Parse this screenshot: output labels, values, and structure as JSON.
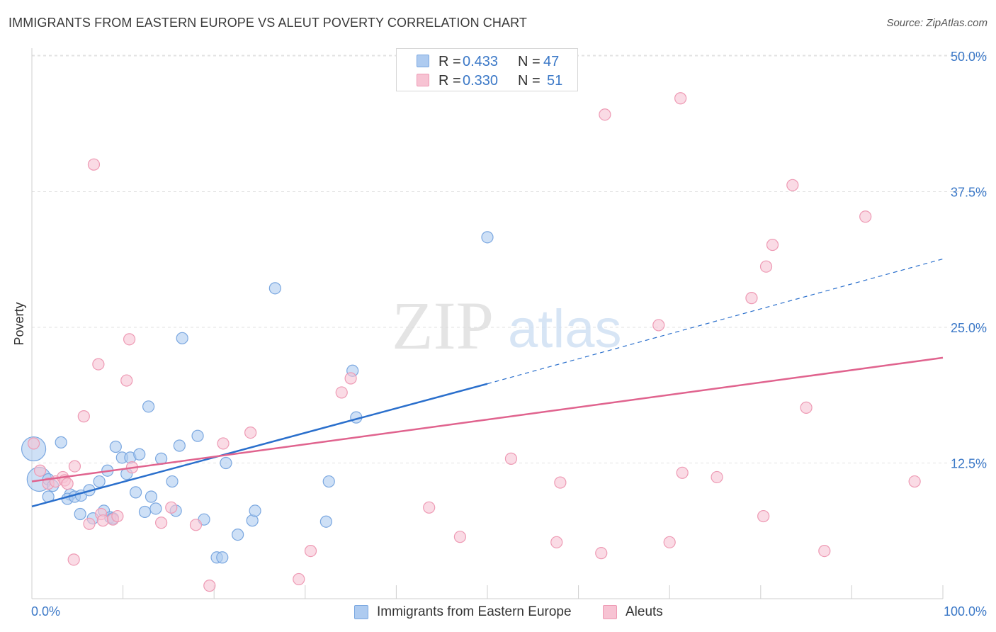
{
  "title": "IMMIGRANTS FROM EASTERN EUROPE VS ALEUT POVERTY CORRELATION CHART",
  "source": "Source: ZipAtlas.com",
  "watermark": {
    "zip": "ZIP",
    "atlas": "atlas"
  },
  "legend_top": [
    {
      "r_label": "R =",
      "r_value": "0.433",
      "n_label": "N =",
      "n_value": "47"
    },
    {
      "r_label": "R =",
      "r_value": "0.330",
      "n_label": "N =",
      "n_value": "51"
    }
  ],
  "colors": {
    "blue_fill": "#aecbf0",
    "blue_stroke": "#7aa7e0",
    "blue_line": "#2a6fcc",
    "pink_fill": "#f7c3d3",
    "pink_stroke": "#ee9ab4",
    "pink_line": "#e0638e",
    "axis_text": "#3b78c7",
    "grid": "#e2e2e2"
  },
  "chart_data": {
    "type": "scatter",
    "title": "IMMIGRANTS FROM EASTERN EUROPE VS ALEUT POVERTY CORRELATION CHART",
    "xlabel": "",
    "ylabel": "Poverty",
    "xlim": [
      0,
      100
    ],
    "ylim": [
      0,
      50
    ],
    "x_tick_labels": [
      "0.0%",
      "100.0%"
    ],
    "y_ticks": [
      12.5,
      25.0,
      37.5,
      50.0
    ],
    "y_tick_labels": [
      "12.5%",
      "25.0%",
      "37.5%",
      "50.0%"
    ],
    "series": [
      {
        "name": "Immigrants from Eastern Europe",
        "color": "blue",
        "r": 0.433,
        "n": 47,
        "trend": {
          "x0": 0,
          "y0": 8.5,
          "x1": 50,
          "y1": 19.8,
          "dash_to_x": 100,
          "dash_to_y": 31.3
        },
        "points": [
          [
            0.2,
            13.8,
            "big"
          ],
          [
            0.8,
            11.0,
            "big"
          ],
          [
            1.8,
            11.0
          ],
          [
            2.3,
            10.4
          ],
          [
            1.8,
            9.4
          ],
          [
            3.2,
            14.4
          ],
          [
            4.2,
            9.6
          ],
          [
            3.9,
            9.2
          ],
          [
            4.7,
            9.4
          ],
          [
            5.4,
            9.5
          ],
          [
            6.3,
            10.0
          ],
          [
            5.3,
            7.8
          ],
          [
            6.7,
            7.4
          ],
          [
            7.4,
            10.8
          ],
          [
            7.9,
            8.1
          ],
          [
            8.3,
            11.8
          ],
          [
            8.6,
            7.5
          ],
          [
            8.9,
            7.4
          ],
          [
            9.2,
            14.0
          ],
          [
            9.9,
            13.0
          ],
          [
            10.4,
            11.5
          ],
          [
            10.8,
            13.0
          ],
          [
            11.4,
            9.8
          ],
          [
            11.8,
            13.3
          ],
          [
            12.4,
            8.0
          ],
          [
            12.8,
            17.7
          ],
          [
            13.1,
            9.4
          ],
          [
            13.6,
            8.3
          ],
          [
            14.2,
            12.9
          ],
          [
            15.4,
            10.8
          ],
          [
            15.8,
            8.1
          ],
          [
            16.2,
            14.1
          ],
          [
            16.5,
            24.0
          ],
          [
            18.2,
            15.0
          ],
          [
            18.9,
            7.3
          ],
          [
            20.3,
            3.8
          ],
          [
            20.9,
            3.8
          ],
          [
            21.3,
            12.5
          ],
          [
            22.6,
            5.9
          ],
          [
            24.2,
            7.2
          ],
          [
            24.5,
            8.1
          ],
          [
            26.7,
            28.6
          ],
          [
            32.3,
            7.1
          ],
          [
            32.6,
            10.8
          ],
          [
            35.2,
            21.0
          ],
          [
            35.6,
            16.7
          ],
          [
            50.0,
            33.3
          ]
        ]
      },
      {
        "name": "Aleuts",
        "color": "pink",
        "r": 0.33,
        "n": 51,
        "trend": {
          "x0": 0,
          "y0": 10.8,
          "x1": 100,
          "y1": 22.2
        },
        "points": [
          [
            0.2,
            14.3
          ],
          [
            0.9,
            11.8
          ],
          [
            1.8,
            10.6
          ],
          [
            2.6,
            10.8
          ],
          [
            3.4,
            11.2
          ],
          [
            3.6,
            10.9
          ],
          [
            3.9,
            10.6
          ],
          [
            4.6,
            3.6
          ],
          [
            4.7,
            12.2
          ],
          [
            5.7,
            16.8
          ],
          [
            6.3,
            6.9
          ],
          [
            6.8,
            40.0
          ],
          [
            7.3,
            21.6
          ],
          [
            7.6,
            7.8
          ],
          [
            7.8,
            7.2
          ],
          [
            8.9,
            7.3
          ],
          [
            9.4,
            7.6
          ],
          [
            10.4,
            20.1
          ],
          [
            10.7,
            23.9
          ],
          [
            11.0,
            12.1
          ],
          [
            14.2,
            7.0
          ],
          [
            15.3,
            8.4
          ],
          [
            18.0,
            6.8
          ],
          [
            19.5,
            1.2
          ],
          [
            21.0,
            14.3
          ],
          [
            24.0,
            15.3
          ],
          [
            29.3,
            1.8
          ],
          [
            30.6,
            4.4
          ],
          [
            34.0,
            19.0
          ],
          [
            35.0,
            20.3
          ],
          [
            43.6,
            8.4
          ],
          [
            47.0,
            5.7
          ],
          [
            52.6,
            12.9
          ],
          [
            57.6,
            5.2
          ],
          [
            58.0,
            10.7
          ],
          [
            62.5,
            4.2
          ],
          [
            62.9,
            44.6
          ],
          [
            68.8,
            25.2
          ],
          [
            70.0,
            5.2
          ],
          [
            71.2,
            46.1
          ],
          [
            71.4,
            11.6
          ],
          [
            75.2,
            11.2
          ],
          [
            79.0,
            27.7
          ],
          [
            80.3,
            7.6
          ],
          [
            80.6,
            30.6
          ],
          [
            81.3,
            32.6
          ],
          [
            83.5,
            38.1
          ],
          [
            85.0,
            17.6
          ],
          [
            87.0,
            4.4
          ],
          [
            91.5,
            35.2
          ],
          [
            96.9,
            10.8
          ]
        ]
      }
    ]
  },
  "legend_bottom": [
    {
      "label": "Immigrants from Eastern Europe"
    },
    {
      "label": "Aleuts"
    }
  ]
}
